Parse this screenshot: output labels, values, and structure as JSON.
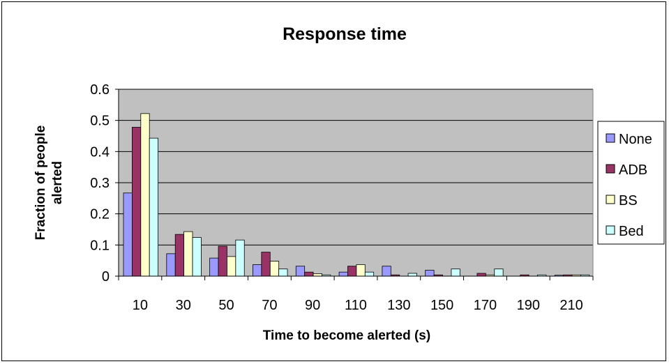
{
  "chart_data": {
    "type": "bar",
    "title": "Response time",
    "xlabel": "Time to become alerted (s)",
    "ylabel_lines": [
      "Fraction of people",
      "alerted"
    ],
    "categories": [
      "10",
      "30",
      "50",
      "70",
      "90",
      "110",
      "130",
      "150",
      "170",
      "190",
      "210"
    ],
    "ylim": [
      0,
      0.6
    ],
    "yticks": [
      "0",
      "0.1",
      "0.2",
      "0.3",
      "0.4",
      "0.5",
      "0.6"
    ],
    "grid": true,
    "plot_background": "#c0c0c0",
    "legend_position": "right",
    "series": [
      {
        "name": "None",
        "color": "#9999ff",
        "values": [
          0.267,
          0.072,
          0.058,
          0.037,
          0.032,
          0.013,
          0.032,
          0.019,
          0.0,
          0.0,
          0.003
        ]
      },
      {
        "name": "ADB",
        "color": "#993366",
        "values": [
          0.478,
          0.134,
          0.096,
          0.077,
          0.013,
          0.032,
          0.004,
          0.004,
          0.009,
          0.004,
          0.004
        ]
      },
      {
        "name": "BS",
        "color": "#ffffcc",
        "values": [
          0.522,
          0.143,
          0.063,
          0.048,
          0.008,
          0.037,
          0.0,
          0.0,
          0.004,
          0.0,
          0.004
        ]
      },
      {
        "name": "Bed",
        "color": "#ccffff",
        "values": [
          0.443,
          0.124,
          0.116,
          0.023,
          0.004,
          0.013,
          0.009,
          0.023,
          0.023,
          0.004,
          0.004
        ]
      }
    ]
  }
}
